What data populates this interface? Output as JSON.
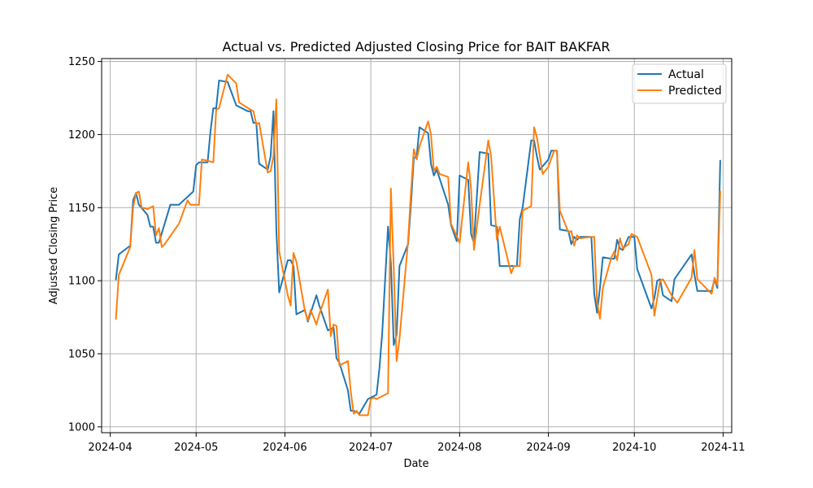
{
  "chart_data": {
    "type": "line",
    "title": "Actual vs. Predicted Adjusted Closing Price for BAIT BAKFAR",
    "xlabel": "Date",
    "ylabel": "Adjusted Closing Price",
    "xlim": [
      "2024-03-29",
      "2024-11-04"
    ],
    "ylim": [
      996,
      1252
    ],
    "x_ticks": [
      "2024-04-01",
      "2024-05-01",
      "2024-06-01",
      "2024-07-01",
      "2024-08-01",
      "2024-09-01",
      "2024-10-01",
      "2024-11-01"
    ],
    "x_tick_labels": [
      "2024-04",
      "2024-05",
      "2024-06",
      "2024-07",
      "2024-08",
      "2024-09",
      "2024-10",
      "2024-11"
    ],
    "y_ticks": [
      1000,
      1050,
      1100,
      1150,
      1200,
      1250
    ],
    "grid": true,
    "legend": "top-right",
    "colors": {
      "actual": "#1f77b4",
      "predicted": "#ff7f0e"
    },
    "series": [
      {
        "name": "Actual",
        "points": [
          [
            "2024-04-03",
            1101
          ],
          [
            "2024-04-04",
            1118
          ],
          [
            "2024-04-08",
            1124
          ],
          [
            "2024-04-09",
            1155
          ],
          [
            "2024-04-10",
            1160
          ],
          [
            "2024-04-11",
            1152
          ],
          [
            "2024-04-14",
            1145
          ],
          [
            "2024-04-15",
            1137
          ],
          [
            "2024-04-16",
            1137
          ],
          [
            "2024-04-17",
            1126
          ],
          [
            "2024-04-18",
            1126
          ],
          [
            "2024-04-22",
            1152
          ],
          [
            "2024-04-25",
            1152
          ],
          [
            "2024-04-30",
            1161
          ],
          [
            "2024-05-01",
            1179
          ],
          [
            "2024-05-02",
            1181
          ],
          [
            "2024-05-05",
            1181
          ],
          [
            "2024-05-06",
            1202
          ],
          [
            "2024-05-07",
            1218
          ],
          [
            "2024-05-08",
            1218
          ],
          [
            "2024-05-09",
            1237
          ],
          [
            "2024-05-12",
            1236
          ],
          [
            "2024-05-15",
            1220
          ],
          [
            "2024-05-19",
            1216
          ],
          [
            "2024-05-20",
            1216
          ],
          [
            "2024-05-21",
            1208
          ],
          [
            "2024-05-22",
            1208
          ],
          [
            "2024-05-23",
            1180
          ],
          [
            "2024-05-26",
            1176
          ],
          [
            "2024-05-27",
            1185
          ],
          [
            "2024-05-28",
            1216
          ],
          [
            "2024-05-29",
            1135
          ],
          [
            "2024-05-30",
            1092
          ],
          [
            "2024-06-02",
            1114
          ],
          [
            "2024-06-03",
            1114
          ],
          [
            "2024-06-04",
            1110
          ],
          [
            "2024-06-05",
            1077
          ],
          [
            "2024-06-08",
            1080
          ],
          [
            "2024-06-09",
            1072
          ],
          [
            "2024-06-10",
            1078
          ],
          [
            "2024-06-12",
            1090
          ],
          [
            "2024-06-13",
            1083
          ],
          [
            "2024-06-16",
            1066
          ],
          [
            "2024-06-18",
            1068
          ],
          [
            "2024-06-19",
            1047
          ],
          [
            "2024-06-20",
            1044
          ],
          [
            "2024-06-23",
            1025
          ],
          [
            "2024-06-24",
            1011
          ],
          [
            "2024-06-25",
            1011
          ],
          [
            "2024-06-26",
            1010
          ],
          [
            "2024-06-27",
            1009
          ],
          [
            "2024-06-30",
            1019
          ],
          [
            "2024-07-01",
            1020
          ],
          [
            "2024-07-03",
            1022
          ],
          [
            "2024-07-04",
            1040
          ],
          [
            "2024-07-05",
            1065
          ],
          [
            "2024-07-07",
            1137
          ],
          [
            "2024-07-08",
            1112
          ],
          [
            "2024-07-09",
            1056
          ],
          [
            "2024-07-10",
            1063
          ],
          [
            "2024-07-11",
            1110
          ],
          [
            "2024-07-14",
            1125
          ],
          [
            "2024-07-15",
            1152
          ],
          [
            "2024-07-16",
            1184
          ],
          [
            "2024-07-17",
            1185
          ],
          [
            "2024-07-18",
            1205
          ],
          [
            "2024-07-21",
            1201
          ],
          [
            "2024-07-22",
            1180
          ],
          [
            "2024-07-23",
            1172
          ],
          [
            "2024-07-24",
            1176
          ],
          [
            "2024-07-25",
            1170
          ],
          [
            "2024-07-28",
            1152
          ],
          [
            "2024-07-29",
            1138
          ],
          [
            "2024-07-31",
            1127
          ],
          [
            "2024-08-01",
            1172
          ],
          [
            "2024-08-04",
            1169
          ],
          [
            "2024-08-05",
            1132
          ],
          [
            "2024-08-06",
            1126
          ],
          [
            "2024-08-08",
            1188
          ],
          [
            "2024-08-11",
            1187
          ],
          [
            "2024-08-12",
            1138
          ],
          [
            "2024-08-14",
            1137
          ],
          [
            "2024-08-15",
            1110
          ],
          [
            "2024-08-19",
            1110
          ],
          [
            "2024-08-21",
            1110
          ],
          [
            "2024-08-22",
            1142
          ],
          [
            "2024-08-23",
            1150
          ],
          [
            "2024-08-26",
            1196
          ],
          [
            "2024-08-27",
            1196
          ],
          [
            "2024-08-28",
            1185
          ],
          [
            "2024-08-29",
            1176
          ],
          [
            "2024-09-01",
            1183
          ],
          [
            "2024-09-02",
            1189
          ],
          [
            "2024-09-04",
            1189
          ],
          [
            "2024-09-05",
            1135
          ],
          [
            "2024-09-08",
            1134
          ],
          [
            "2024-09-09",
            1125
          ],
          [
            "2024-09-10",
            1130
          ],
          [
            "2024-09-11",
            1128
          ],
          [
            "2024-09-12",
            1130
          ],
          [
            "2024-09-16",
            1130
          ],
          [
            "2024-09-17",
            1091
          ],
          [
            "2024-09-18",
            1078
          ],
          [
            "2024-09-19",
            1095
          ],
          [
            "2024-09-20",
            1116
          ],
          [
            "2024-09-23",
            1115
          ],
          [
            "2024-09-24",
            1115
          ],
          [
            "2024-09-25",
            1128
          ],
          [
            "2024-09-26",
            1122
          ],
          [
            "2024-09-27",
            1121
          ],
          [
            "2024-09-29",
            1130
          ],
          [
            "2024-10-01",
            1130
          ],
          [
            "2024-10-02",
            1108
          ],
          [
            "2024-10-07",
            1081
          ],
          [
            "2024-10-08",
            1088
          ],
          [
            "2024-10-09",
            1100
          ],
          [
            "2024-10-10",
            1101
          ],
          [
            "2024-10-11",
            1090
          ],
          [
            "2024-10-14",
            1086
          ],
          [
            "2024-10-15",
            1101
          ],
          [
            "2024-10-21",
            1118
          ],
          [
            "2024-10-22",
            1104
          ],
          [
            "2024-10-23",
            1093
          ],
          [
            "2024-10-28",
            1093
          ],
          [
            "2024-10-29",
            1101
          ],
          [
            "2024-10-30",
            1095
          ],
          [
            "2024-10-31",
            1182
          ]
        ]
      },
      {
        "name": "Predicted",
        "points": [
          [
            "2024-04-03",
            1074
          ],
          [
            "2024-04-04",
            1104
          ],
          [
            "2024-04-08",
            1123
          ],
          [
            "2024-04-09",
            1150
          ],
          [
            "2024-04-10",
            1160
          ],
          [
            "2024-04-11",
            1161
          ],
          [
            "2024-04-12",
            1150
          ],
          [
            "2024-04-14",
            1149
          ],
          [
            "2024-04-16",
            1151
          ],
          [
            "2024-04-17",
            1131
          ],
          [
            "2024-04-18",
            1136
          ],
          [
            "2024-04-19",
            1123
          ],
          [
            "2024-04-20",
            1125
          ],
          [
            "2024-04-25",
            1139
          ],
          [
            "2024-04-28",
            1155
          ],
          [
            "2024-04-29",
            1152
          ],
          [
            "2024-05-01",
            1152
          ],
          [
            "2024-05-02",
            1152
          ],
          [
            "2024-05-03",
            1183
          ],
          [
            "2024-05-05",
            1182
          ],
          [
            "2024-05-07",
            1181
          ],
          [
            "2024-05-08",
            1217
          ],
          [
            "2024-05-09",
            1218
          ],
          [
            "2024-05-12",
            1241
          ],
          [
            "2024-05-15",
            1235
          ],
          [
            "2024-05-16",
            1222
          ],
          [
            "2024-05-20",
            1217
          ],
          [
            "2024-05-21",
            1216
          ],
          [
            "2024-05-22",
            1207
          ],
          [
            "2024-05-23",
            1208
          ],
          [
            "2024-05-26",
            1174
          ],
          [
            "2024-05-27",
            1175
          ],
          [
            "2024-05-28",
            1185
          ],
          [
            "2024-05-29",
            1224
          ],
          [
            "2024-05-30",
            1120
          ],
          [
            "2024-06-02",
            1090
          ],
          [
            "2024-06-03",
            1083
          ],
          [
            "2024-06-04",
            1119
          ],
          [
            "2024-06-05",
            1113
          ],
          [
            "2024-06-08",
            1079
          ],
          [
            "2024-06-09",
            1073
          ],
          [
            "2024-06-10",
            1080
          ],
          [
            "2024-06-12",
            1070
          ],
          [
            "2024-06-13",
            1077
          ],
          [
            "2024-06-16",
            1094
          ],
          [
            "2024-06-17",
            1062
          ],
          [
            "2024-06-18",
            1070
          ],
          [
            "2024-06-19",
            1069
          ],
          [
            "2024-06-20",
            1042
          ],
          [
            "2024-06-23",
            1045
          ],
          [
            "2024-06-24",
            1024
          ],
          [
            "2024-06-25",
            1009
          ],
          [
            "2024-06-26",
            1011
          ],
          [
            "2024-06-27",
            1008
          ],
          [
            "2024-06-30",
            1008
          ],
          [
            "2024-07-01",
            1019
          ],
          [
            "2024-07-02",
            1020
          ],
          [
            "2024-07-03",
            1019
          ],
          [
            "2024-07-07",
            1023
          ],
          [
            "2024-07-08",
            1163
          ],
          [
            "2024-07-09",
            1108
          ],
          [
            "2024-07-10",
            1045
          ],
          [
            "2024-07-11",
            1060
          ],
          [
            "2024-07-14",
            1127
          ],
          [
            "2024-07-15",
            1160
          ],
          [
            "2024-07-16",
            1190
          ],
          [
            "2024-07-17",
            1183
          ],
          [
            "2024-07-18",
            1192
          ],
          [
            "2024-07-21",
            1209
          ],
          [
            "2024-07-22",
            1200
          ],
          [
            "2024-07-23",
            1175
          ],
          [
            "2024-07-24",
            1178
          ],
          [
            "2024-07-25",
            1173
          ],
          [
            "2024-07-28",
            1171
          ],
          [
            "2024-07-29",
            1139
          ],
          [
            "2024-08-01",
            1126
          ],
          [
            "2024-08-04",
            1181
          ],
          [
            "2024-08-05",
            1163
          ],
          [
            "2024-08-06",
            1121
          ],
          [
            "2024-08-08",
            1152
          ],
          [
            "2024-08-11",
            1196
          ],
          [
            "2024-08-12",
            1185
          ],
          [
            "2024-08-14",
            1128
          ],
          [
            "2024-08-15",
            1137
          ],
          [
            "2024-08-19",
            1105
          ],
          [
            "2024-08-20",
            1110
          ],
          [
            "2024-08-22",
            1110
          ],
          [
            "2024-08-23",
            1148
          ],
          [
            "2024-08-26",
            1151
          ],
          [
            "2024-08-27",
            1205
          ],
          [
            "2024-08-28",
            1198
          ],
          [
            "2024-08-30",
            1173
          ],
          [
            "2024-09-01",
            1178
          ],
          [
            "2024-09-03",
            1189
          ],
          [
            "2024-09-04",
            1189
          ],
          [
            "2024-09-05",
            1148
          ],
          [
            "2024-09-08",
            1133
          ],
          [
            "2024-09-09",
            1134
          ],
          [
            "2024-09-10",
            1124
          ],
          [
            "2024-09-11",
            1131
          ],
          [
            "2024-09-12",
            1129
          ],
          [
            "2024-09-16",
            1130
          ],
          [
            "2024-09-17",
            1130
          ],
          [
            "2024-09-18",
            1085
          ],
          [
            "2024-09-19",
            1074
          ],
          [
            "2024-09-20",
            1095
          ],
          [
            "2024-09-23",
            1116
          ],
          [
            "2024-09-24",
            1120
          ],
          [
            "2024-09-25",
            1114
          ],
          [
            "2024-09-26",
            1129
          ],
          [
            "2024-09-27",
            1122
          ],
          [
            "2024-09-29",
            1125
          ],
          [
            "2024-09-30",
            1132
          ],
          [
            "2024-10-02",
            1130
          ],
          [
            "2024-10-07",
            1104
          ],
          [
            "2024-10-08",
            1076
          ],
          [
            "2024-10-10",
            1100
          ],
          [
            "2024-10-11",
            1101
          ],
          [
            "2024-10-14",
            1090
          ],
          [
            "2024-10-16",
            1085
          ],
          [
            "2024-10-21",
            1102
          ],
          [
            "2024-10-22",
            1121
          ],
          [
            "2024-10-23",
            1101
          ],
          [
            "2024-10-28",
            1091
          ],
          [
            "2024-10-29",
            1102
          ],
          [
            "2024-10-30",
            1097
          ],
          [
            "2024-10-31",
            1161
          ]
        ]
      }
    ]
  }
}
